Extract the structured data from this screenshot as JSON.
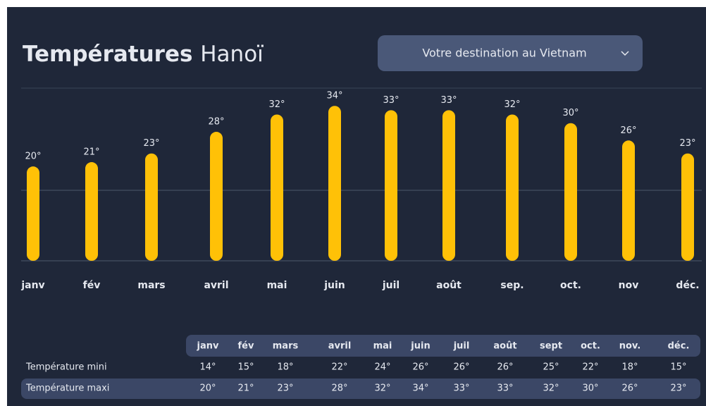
{
  "chart_data": {
    "type": "bar",
    "title": "Températures",
    "city": "Hanoï",
    "dropdown": "Votre destination au Vietnam",
    "categories": [
      "janv",
      "fév",
      "mars",
      "avril",
      "mai",
      "juin",
      "juil",
      "août",
      "sep.",
      "oct.",
      "nov",
      "déc."
    ],
    "values": [
      20,
      21,
      23,
      28,
      32,
      34,
      33,
      33,
      32,
      30,
      26,
      23
    ],
    "value_labels": [
      "20°",
      "21°",
      "23°",
      "28°",
      "32°",
      "34°",
      "33°",
      "33°",
      "32°",
      "30°",
      "26°",
      "23°"
    ],
    "color": "#ffc107"
  },
  "table": {
    "columns": [
      "janv",
      "fév",
      "mars",
      "avril",
      "mai",
      "juin",
      "juil",
      "août",
      "sept",
      "oct.",
      "nov.",
      "déc."
    ],
    "rows": [
      {
        "label": "Température mini",
        "values": [
          "14°",
          "15°",
          "18°",
          "22°",
          "24°",
          "26°",
          "26°",
          "26°",
          "25°",
          "22°",
          "18°",
          "15°"
        ]
      },
      {
        "label": "Température maxi",
        "values": [
          "20°",
          "21°",
          "23°",
          "28°",
          "32°",
          "34°",
          "33°",
          "33°",
          "32°",
          "30°",
          "26°",
          "23°"
        ]
      }
    ]
  }
}
